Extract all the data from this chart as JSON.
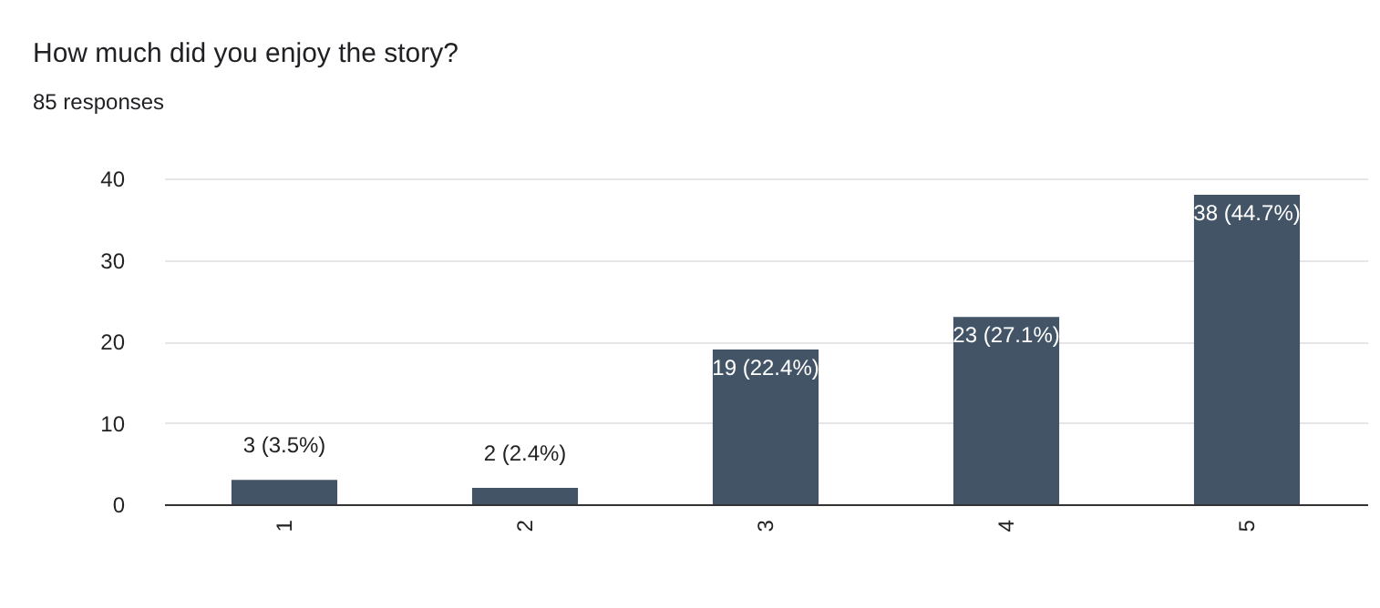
{
  "chart_data": {
    "type": "bar",
    "title": "How much did you enjoy the story?",
    "subtitle": "85 responses",
    "categories": [
      "1",
      "2",
      "3",
      "4",
      "5"
    ],
    "values": [
      3,
      2,
      19,
      23,
      38
    ],
    "value_labels": [
      "3 (3.5%)",
      "2 (2.4%)",
      "19 (22.4%)",
      "23 (27.1%)",
      "38 (44.7%)"
    ],
    "color": "#425466",
    "ylim": [
      0,
      40
    ],
    "yticks": [
      0,
      10,
      20,
      30,
      40
    ],
    "grid": "y"
  }
}
